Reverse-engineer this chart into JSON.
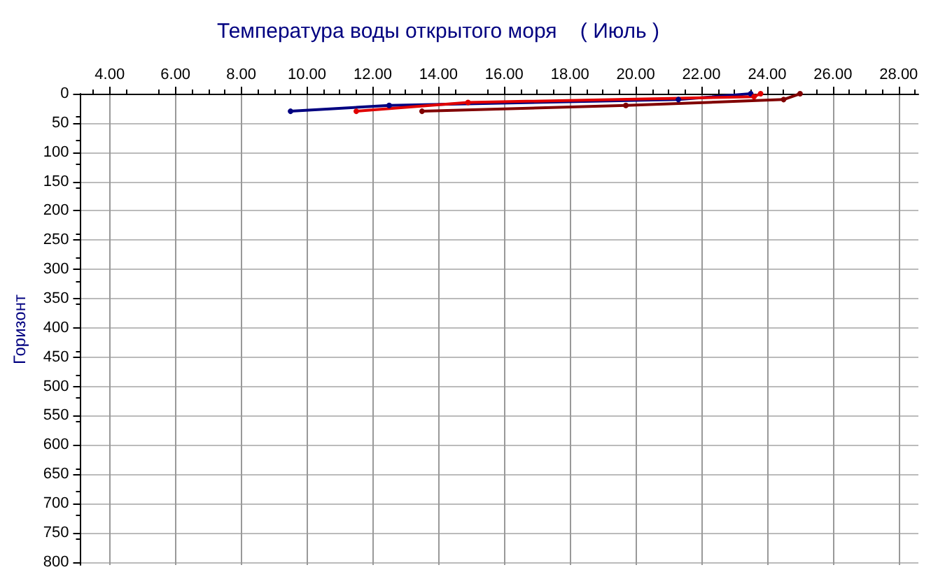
{
  "chart_data": {
    "type": "line",
    "title": "Температура воды открытого моря    ( Июль )",
    "ylabel": "Горизонт",
    "xlim": [
      3.1,
      28.6
    ],
    "xticks": [
      {
        "value": 4,
        "label": "4.00"
      },
      {
        "value": 6,
        "label": "6.00"
      },
      {
        "value": 8,
        "label": "8.00"
      },
      {
        "value": 10,
        "label": "10.00"
      },
      {
        "value": 12,
        "label": "12.00"
      },
      {
        "value": 14,
        "label": "14.00"
      },
      {
        "value": 16,
        "label": "16.00"
      },
      {
        "value": 18,
        "label": "18.00"
      },
      {
        "value": 20,
        "label": "20.00"
      },
      {
        "value": 22,
        "label": "22.00"
      },
      {
        "value": 24,
        "label": "24.00"
      },
      {
        "value": 26,
        "label": "26.00"
      },
      {
        "value": 28,
        "label": "28.00"
      }
    ],
    "ylim": [
      805,
      0
    ],
    "yticks": [
      0,
      50,
      100,
      150,
      200,
      250,
      300,
      350,
      400,
      450,
      500,
      550,
      600,
      650,
      700,
      750,
      800
    ],
    "grid": true,
    "marker": "circle",
    "line_style": "solid",
    "series": [
      {
        "color": "#000080",
        "x": [
          23.5,
          21.3,
          12.5,
          9.5
        ],
        "values": [
          0,
          10,
          20,
          30
        ]
      },
      {
        "color": "#e00000",
        "x": [
          23.8,
          23.6,
          14.9,
          11.5
        ],
        "values": [
          0,
          5,
          15,
          30
        ]
      },
      {
        "color": "#800000",
        "x": [
          25.0,
          24.5,
          19.7,
          13.5
        ],
        "values": [
          0,
          10,
          20,
          30
        ]
      }
    ]
  }
}
